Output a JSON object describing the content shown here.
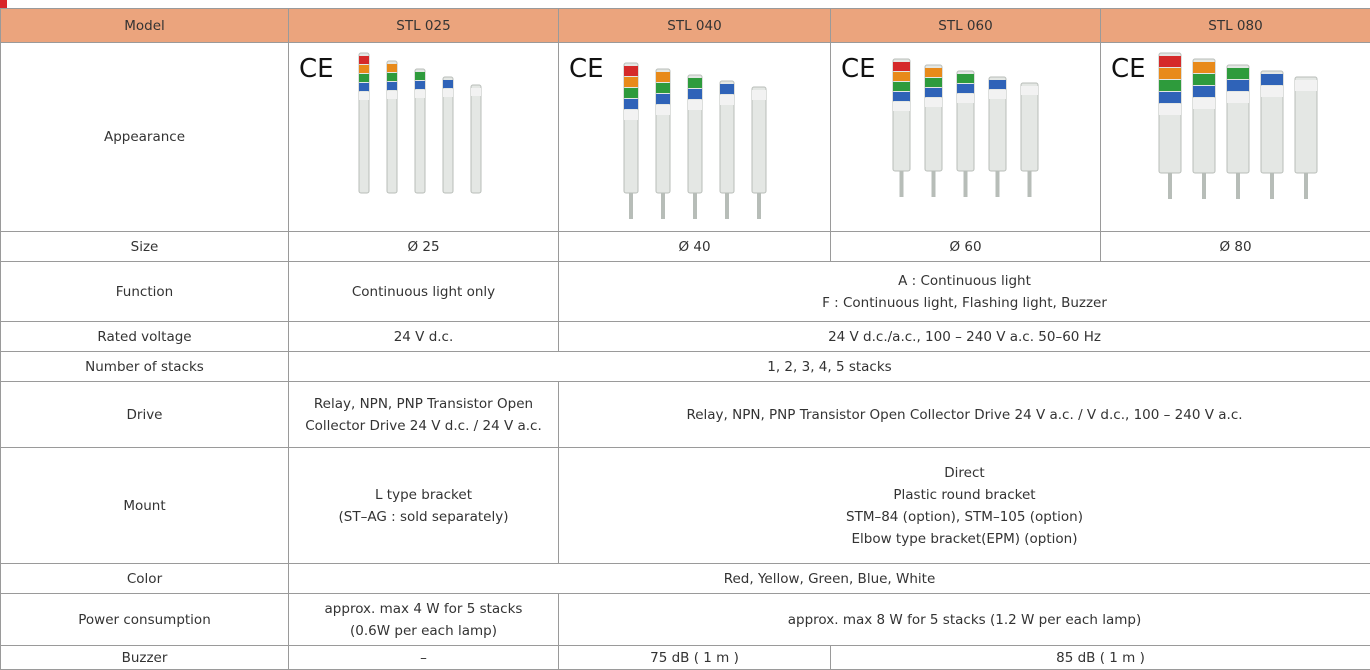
{
  "table": {
    "header": [
      "Model",
      "STL 025",
      "STL 040",
      "STL 060",
      "STL 080"
    ],
    "rows": [
      {
        "label": "Appearance",
        "cells": [
          [
            "CE"
          ],
          [
            "CE"
          ],
          [
            "CE"
          ],
          [
            "CE"
          ]
        ]
      },
      {
        "label": "Size",
        "cells": [
          [
            "Ø 25"
          ],
          [
            "Ø 40"
          ],
          [
            "Ø 60"
          ],
          [
            "Ø 80"
          ]
        ]
      },
      {
        "label": "Function",
        "cells": [
          [
            "Continuous light only"
          ],
          [
            "A : Continuous light",
            "F : Continuous light, Flashing light, Buzzer"
          ]
        ]
      },
      {
        "label": "Rated voltage",
        "cells": [
          [
            "24 V d.c."
          ],
          [
            "24 V d.c./a.c., 100 – 240 V a.c. 50–60 Hz"
          ]
        ]
      },
      {
        "label": "Number of stacks",
        "cells": [
          [
            "1, 2, 3, 4, 5  stacks"
          ]
        ]
      },
      {
        "label": "Drive",
        "cells": [
          [
            "Relay, NPN, PNP Transistor Open",
            "Collector Drive  24 V d.c. / 24 V a.c."
          ],
          [
            "Relay, NPN, PNP Transistor Open Collector Drive  24 V a.c. / V d.c., 100 – 240 V a.c."
          ]
        ]
      },
      {
        "label": "Mount",
        "cells": [
          [
            "L type bracket",
            "(ST–AG : sold separately)"
          ],
          [
            "Direct",
            "Plastic round bracket",
            "STM–84 (option), STM–105 (option)",
            "Elbow type bracket(EPM) (option)"
          ]
        ]
      },
      {
        "label": "Color",
        "cells": [
          [
            "Red, Yellow, Green, Blue, White"
          ]
        ]
      },
      {
        "label": "Power consumption",
        "cells": [
          [
            "approx. max 4 W for 5 stacks",
            "(0.6W per each lamp)"
          ],
          [
            "approx. max 8 W for 5 stacks (1.2 W per each lamp)"
          ]
        ]
      },
      {
        "label": "Buzzer",
        "cells": [
          [
            "–"
          ],
          [
            "75 dB ( 1 m )"
          ],
          [
            "85 dB ( 1 m )"
          ]
        ]
      }
    ]
  }
}
